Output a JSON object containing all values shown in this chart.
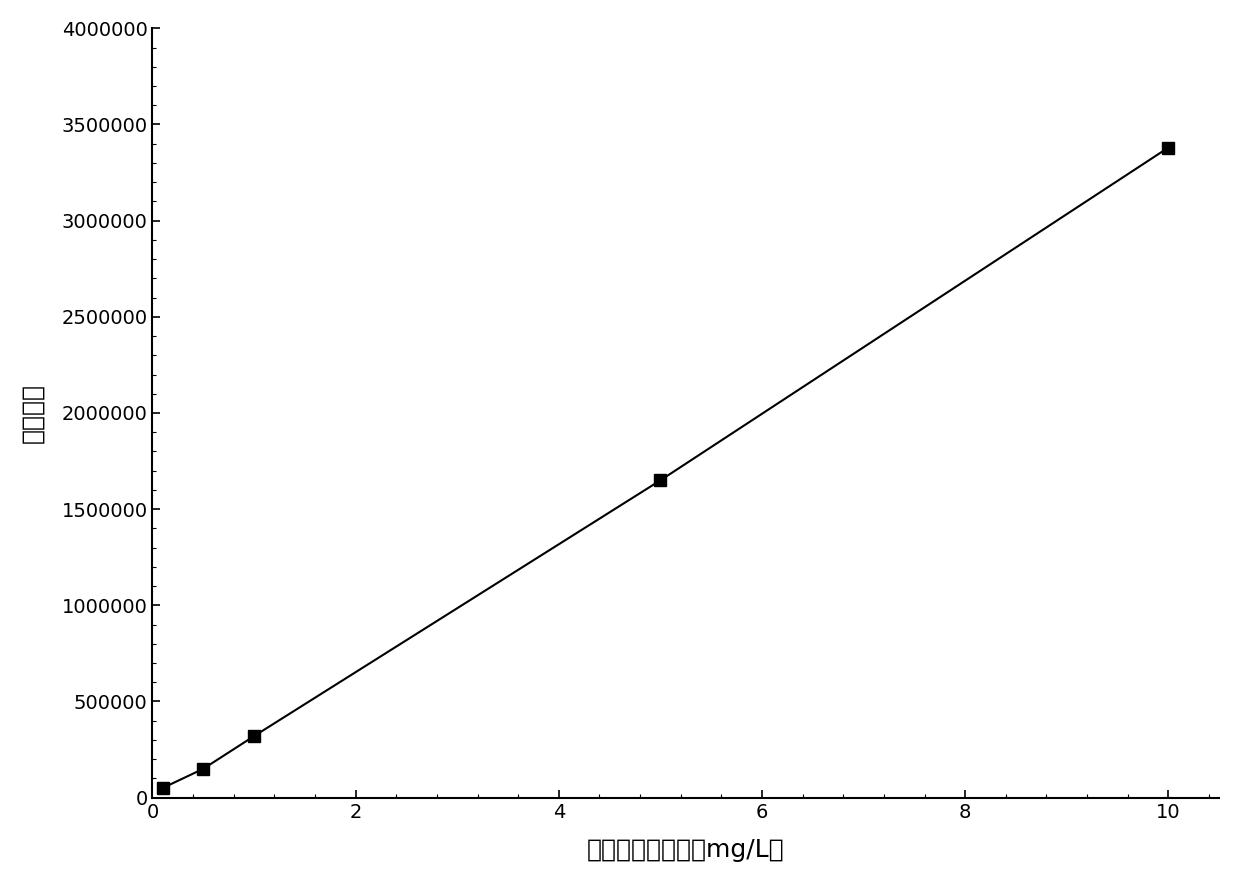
{
  "x_data": [
    0.1,
    0.5,
    1.0,
    5.0,
    10.0
  ],
  "y_data": [
    50000,
    150000,
    320000,
    1650000,
    3380000
  ],
  "xlabel": "馒标准溶液浓度（mg/L）",
  "ylabel": "响应强度",
  "xlim": [
    0,
    10.5
  ],
  "ylim": [
    0,
    4000000
  ],
  "xticks": [
    0,
    2,
    4,
    6,
    8,
    10
  ],
  "yticks": [
    0,
    500000,
    1000000,
    1500000,
    2000000,
    2500000,
    3000000,
    3500000,
    4000000
  ],
  "ytick_labels": [
    "0",
    "500000",
    "1000000",
    "1500000",
    "2000000",
    "2500000",
    "3000000",
    "3500000",
    "4000000"
  ],
  "line_color": "#000000",
  "marker": "s",
  "marker_color": "#000000",
  "marker_size": 8,
  "line_width": 1.5,
  "background_color": "#ffffff",
  "axis_color": "#000000",
  "label_fontsize": 18,
  "tick_fontsize": 14
}
